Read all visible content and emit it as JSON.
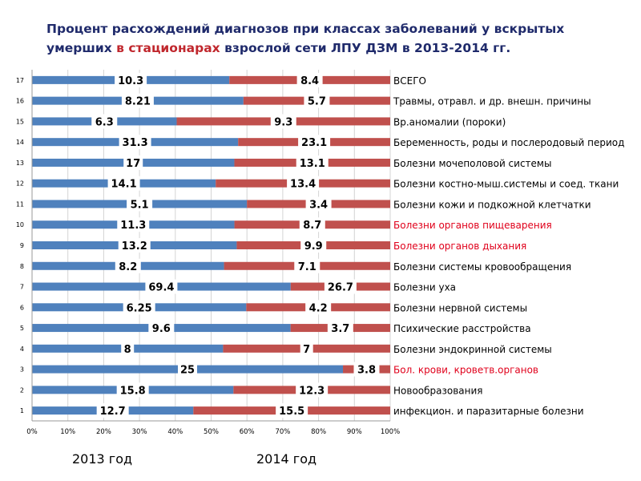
{
  "title": {
    "part1": "Процент расхождений диагнозов при классах заболеваний у вскрытых",
    "part2": "умерших",
    "highlight": "в стационарах",
    "part3": "взрослой сети ЛПУ ДЗМ в 2013-2014 гг."
  },
  "legend": {
    "series_2013": "2013 год",
    "series_2014": "2014 год"
  },
  "colors": {
    "series_2013": "#4f81bd",
    "series_2014": "#c0504d",
    "red_text": "#e0001b",
    "normal_text": "#000000"
  },
  "chart_data": {
    "type": "bar",
    "orientation": "horizontal",
    "stacked": "percent",
    "title": "Процент расхождений диагнозов при классах заболеваний у вскрытых умерших в стационарах взрослой сети ЛПУ ДЗМ в 2013-2014 гг.",
    "xlim": [
      0,
      100
    ],
    "x_ticks": [
      "0%",
      "10%",
      "20%",
      "30%",
      "40%",
      "50%",
      "60%",
      "70%",
      "80%",
      "90%",
      "100%"
    ],
    "grid": true,
    "categories": [
      "1",
      "2",
      "3",
      "4",
      "5",
      "6",
      "7",
      "8",
      "9",
      "10",
      "11",
      "12",
      "13",
      "14",
      "15",
      "16",
      "17"
    ],
    "category_labels": [
      "инфекцион. и паразитарные болезни",
      "Новообразования",
      "Бол. крови, кроветв.органов",
      "Болезни эндокринной системы",
      "Психические расстройства",
      "Болезни нервной системы",
      "Болезни уха",
      "Болезни системы кровообращения",
      "Болезни органов дыхания",
      "Болезни органов пищеварения",
      "Болезни кожи и подкожной клетчатки",
      "Болезни костно-мыш.системы и соед. ткани",
      "Болезни мочеполовой системы",
      "Беременность, роды и послеродовый период",
      "Вр.аномалии (пороки)",
      "Травмы, отравл. и др. внешн. причины",
      "ВСЕГО"
    ],
    "highlighted_labels": [
      false,
      false,
      true,
      false,
      false,
      false,
      false,
      false,
      true,
      true,
      false,
      false,
      false,
      false,
      false,
      false,
      false
    ],
    "series": [
      {
        "name": "2013 год",
        "values": [
          12.7,
          15.8,
          25,
          8,
          9.6,
          6.25,
          69.4,
          8.2,
          13.2,
          11.3,
          5.1,
          14.1,
          17,
          31.3,
          6.3,
          8.21,
          10.3
        ],
        "labels": [
          "12.7",
          "15.8",
          "25",
          "8",
          "9.6",
          "6.25",
          "69.4",
          "8.2",
          "13.2",
          "11.3",
          "5.1",
          "14.1",
          "17",
          "31.3",
          "6.3",
          "8.21",
          "10.3"
        ]
      },
      {
        "name": "2014 год",
        "values": [
          15.5,
          12.3,
          3.8,
          7,
          3.7,
          4.2,
          26.7,
          7.1,
          9.9,
          8.7,
          3.4,
          13.4,
          13.1,
          23.1,
          9.3,
          5.7,
          8.4
        ],
        "labels": [
          "15.5",
          "12.3",
          "3.8",
          "7",
          "3.7",
          "4.2",
          "26.7",
          "7.1",
          "9.9",
          "8.7",
          "3.4",
          "13.4",
          "13.1",
          "23.1",
          "9.3",
          "5.7",
          "8.4"
        ]
      }
    ]
  }
}
